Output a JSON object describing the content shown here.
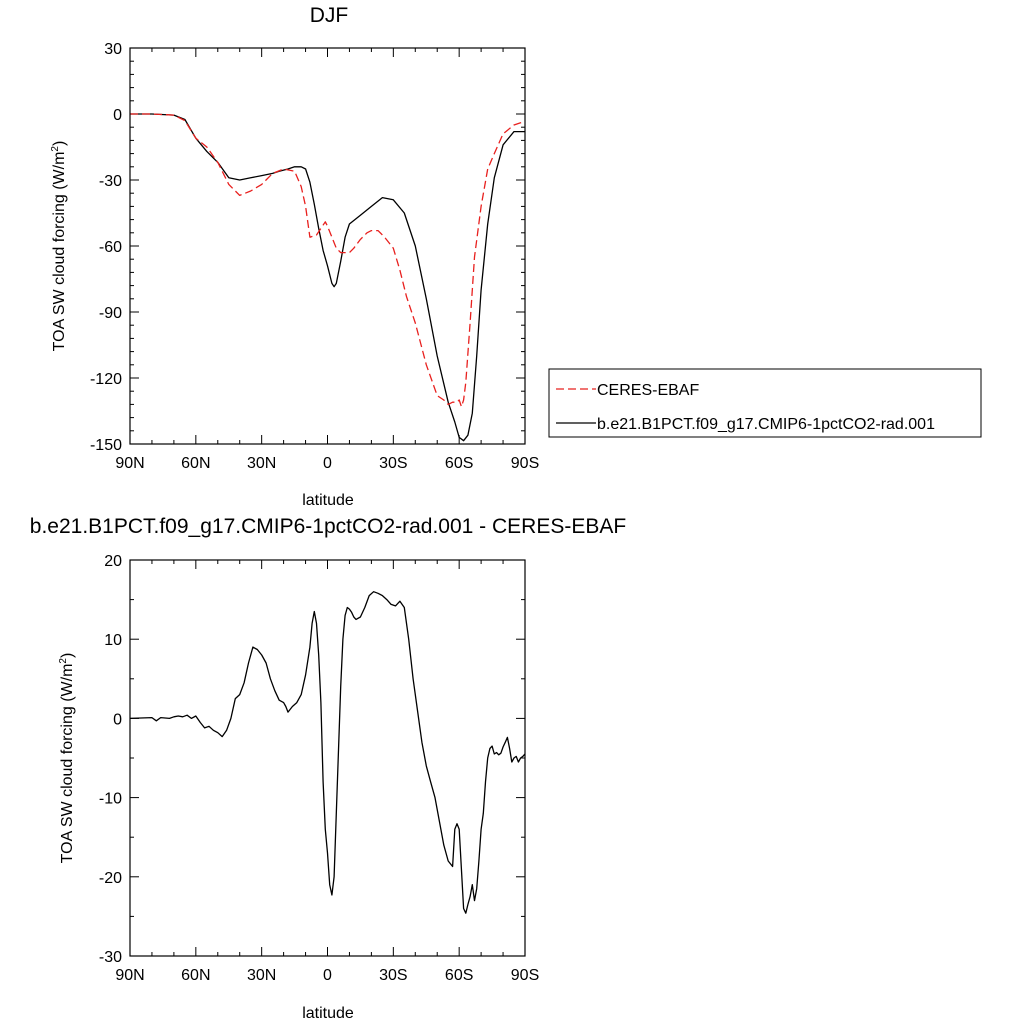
{
  "chart_data": [
    {
      "type": "line",
      "title": "DJF",
      "xlabel": "latitude",
      "ylabel": "TOA SW cloud forcing (W/m",
      "ylabel_sup": "2",
      "ylabel_close": ")",
      "xlim": [
        -90,
        90
      ],
      "ylim": [
        -150,
        30
      ],
      "x_ticks": [
        -90,
        -60,
        -30,
        0,
        30,
        60,
        90
      ],
      "x_tick_labels": [
        "90N",
        "60N",
        "30N",
        "0",
        "30S",
        "60S",
        "90S"
      ],
      "y_ticks": [
        30,
        0,
        -30,
        -60,
        -90,
        -120,
        -150
      ],
      "y_tick_labels": [
        "30",
        "0",
        "-30",
        "-60",
        "-90",
        "-120",
        "-150"
      ],
      "legend_position": "right",
      "series": [
        {
          "name": "CERES-EBAF",
          "color": "#e8201e",
          "dash": true,
          "x": [
            -90,
            -80,
            -70,
            -65,
            -60,
            -55,
            -50,
            -45,
            -40,
            -35,
            -30,
            -25,
            -20,
            -15,
            -12,
            -10,
            -8,
            -5,
            -3,
            -1,
            0,
            2,
            4,
            6,
            8,
            10,
            12,
            15,
            18,
            20,
            23,
            26,
            30,
            33,
            36,
            40,
            45,
            50,
            53,
            55,
            57,
            59,
            60,
            61,
            62,
            63,
            65,
            67,
            70,
            73,
            76,
            80,
            85,
            88,
            90
          ],
          "y": [
            0,
            0,
            -0.5,
            -3,
            -11,
            -15,
            -22,
            -32,
            -37,
            -35,
            -32,
            -27,
            -25,
            -26,
            -33,
            -42,
            -56,
            -55,
            -52,
            -49,
            -51,
            -56,
            -61,
            -63,
            -63,
            -63,
            -61,
            -57,
            -54,
            -53,
            -53,
            -56,
            -61,
            -71,
            -83,
            -95,
            -114,
            -128,
            -130,
            -132,
            -131,
            -131,
            -130,
            -133,
            -130,
            -122,
            -95,
            -65,
            -42,
            -25,
            -18,
            -9,
            -5,
            -4,
            -3
          ]
        },
        {
          "name": "b.e21.B1PCT.f09_g17.CMIP6-1pctCO2-rad.001",
          "color": "#000000",
          "dash": false,
          "x": [
            -90,
            -80,
            -70,
            -65,
            -60,
            -55,
            -50,
            -45,
            -40,
            -35,
            -30,
            -25,
            -22,
            -20,
            -18,
            -15,
            -12,
            -10,
            -8,
            -6,
            -4,
            -2,
            0,
            2,
            3,
            4,
            6,
            8,
            10,
            15,
            20,
            25,
            30,
            35,
            40,
            45,
            50,
            55,
            58,
            60,
            62,
            64,
            66,
            68,
            70,
            73,
            76,
            80,
            85,
            90
          ],
          "y": [
            0,
            0,
            -0.5,
            -2.5,
            -11,
            -17,
            -22,
            -29,
            -30,
            -29,
            -28,
            -27,
            -26,
            -25.5,
            -25,
            -24,
            -24,
            -25,
            -31,
            -41,
            -52,
            -62,
            -69,
            -77,
            -78.5,
            -77,
            -67,
            -56,
            -50,
            -46,
            -42,
            -38,
            -39,
            -45,
            -60,
            -84,
            -110,
            -131,
            -140,
            -147,
            -148.5,
            -146,
            -136,
            -110,
            -80,
            -50,
            -29,
            -14,
            -8,
            -8
          ]
        }
      ]
    },
    {
      "type": "line",
      "title": "b.e21.B1PCT.f09_g17.CMIP6-1pctCO2-rad.001 - CERES-EBAF",
      "xlabel": "latitude",
      "ylabel": "TOA SW cloud forcing (W/m",
      "ylabel_sup": "2",
      "ylabel_close": ")",
      "xlim": [
        -90,
        90
      ],
      "ylim": [
        -30,
        20
      ],
      "x_ticks": [
        -90,
        -60,
        -30,
        0,
        30,
        60,
        90
      ],
      "x_tick_labels": [
        "90N",
        "60N",
        "30N",
        "0",
        "30S",
        "60S",
        "90S"
      ],
      "y_ticks": [
        20,
        10,
        0,
        -10,
        -20,
        -30
      ],
      "y_tick_labels": [
        "20",
        "10",
        "0",
        "-10",
        "-20",
        "-30"
      ],
      "series": [
        {
          "color": "#000000",
          "dash": false,
          "x": [
            -90,
            -80,
            -78,
            -76,
            -72,
            -70,
            -68,
            -66,
            -64,
            -62,
            -60,
            -58,
            -56,
            -54,
            -52,
            -50,
            -48,
            -46,
            -44,
            -42,
            -40,
            -38,
            -36,
            -34,
            -32,
            -30,
            -28,
            -26,
            -24,
            -22,
            -20,
            -19,
            -18,
            -16,
            -14,
            -12,
            -10,
            -8,
            -7,
            -6,
            -5,
            -4,
            -3,
            -2,
            -1,
            0,
            1,
            2,
            3,
            4,
            5,
            6,
            7,
            8,
            9,
            10,
            11,
            12,
            13,
            15,
            17,
            19,
            21,
            23,
            25,
            27,
            29,
            31,
            33,
            35,
            37,
            39,
            41,
            43,
            45,
            47,
            49,
            51,
            53,
            55,
            57,
            58,
            59,
            60,
            61,
            62,
            63,
            64,
            65,
            66,
            67,
            68,
            69,
            70,
            71,
            72,
            73,
            74,
            75,
            76,
            77,
            78,
            79,
            80,
            81,
            82,
            83,
            84,
            85,
            86,
            87,
            88,
            89,
            90
          ],
          "y": [
            0,
            0.1,
            -0.3,
            0.1,
            0,
            0.2,
            0.3,
            0.2,
            0.4,
            0,
            0.3,
            -0.5,
            -1.2,
            -1,
            -1.5,
            -1.8,
            -2.3,
            -1.5,
            0,
            2.5,
            3,
            4.5,
            7,
            9,
            8.7,
            8,
            7,
            5,
            3.5,
            2.3,
            2,
            1.5,
            0.8,
            1.5,
            2,
            3,
            5.5,
            9,
            12,
            13.5,
            12,
            8,
            2,
            -8,
            -14,
            -17,
            -21,
            -22.3,
            -20,
            -12,
            -4,
            4,
            10,
            13,
            14,
            13.8,
            13.4,
            12.8,
            12.5,
            12.8,
            14,
            15.5,
            16,
            15.8,
            15.5,
            15,
            14.4,
            14.2,
            14.8,
            14,
            10,
            5,
            1,
            -3,
            -6,
            -8,
            -10,
            -13,
            -16,
            -18,
            -18.7,
            -14,
            -13.3,
            -14,
            -19,
            -24,
            -24.6,
            -23.5,
            -22.5,
            -21,
            -23,
            -21.5,
            -18,
            -14,
            -12,
            -8,
            -5,
            -3.8,
            -3.5,
            -4.5,
            -4.3,
            -4.6,
            -4.4,
            -3.6,
            -3,
            -2.4,
            -3.8,
            -5.5,
            -5,
            -4.8,
            -5.5,
            -5,
            -4.8,
            -4.5
          ]
        }
      ]
    }
  ]
}
